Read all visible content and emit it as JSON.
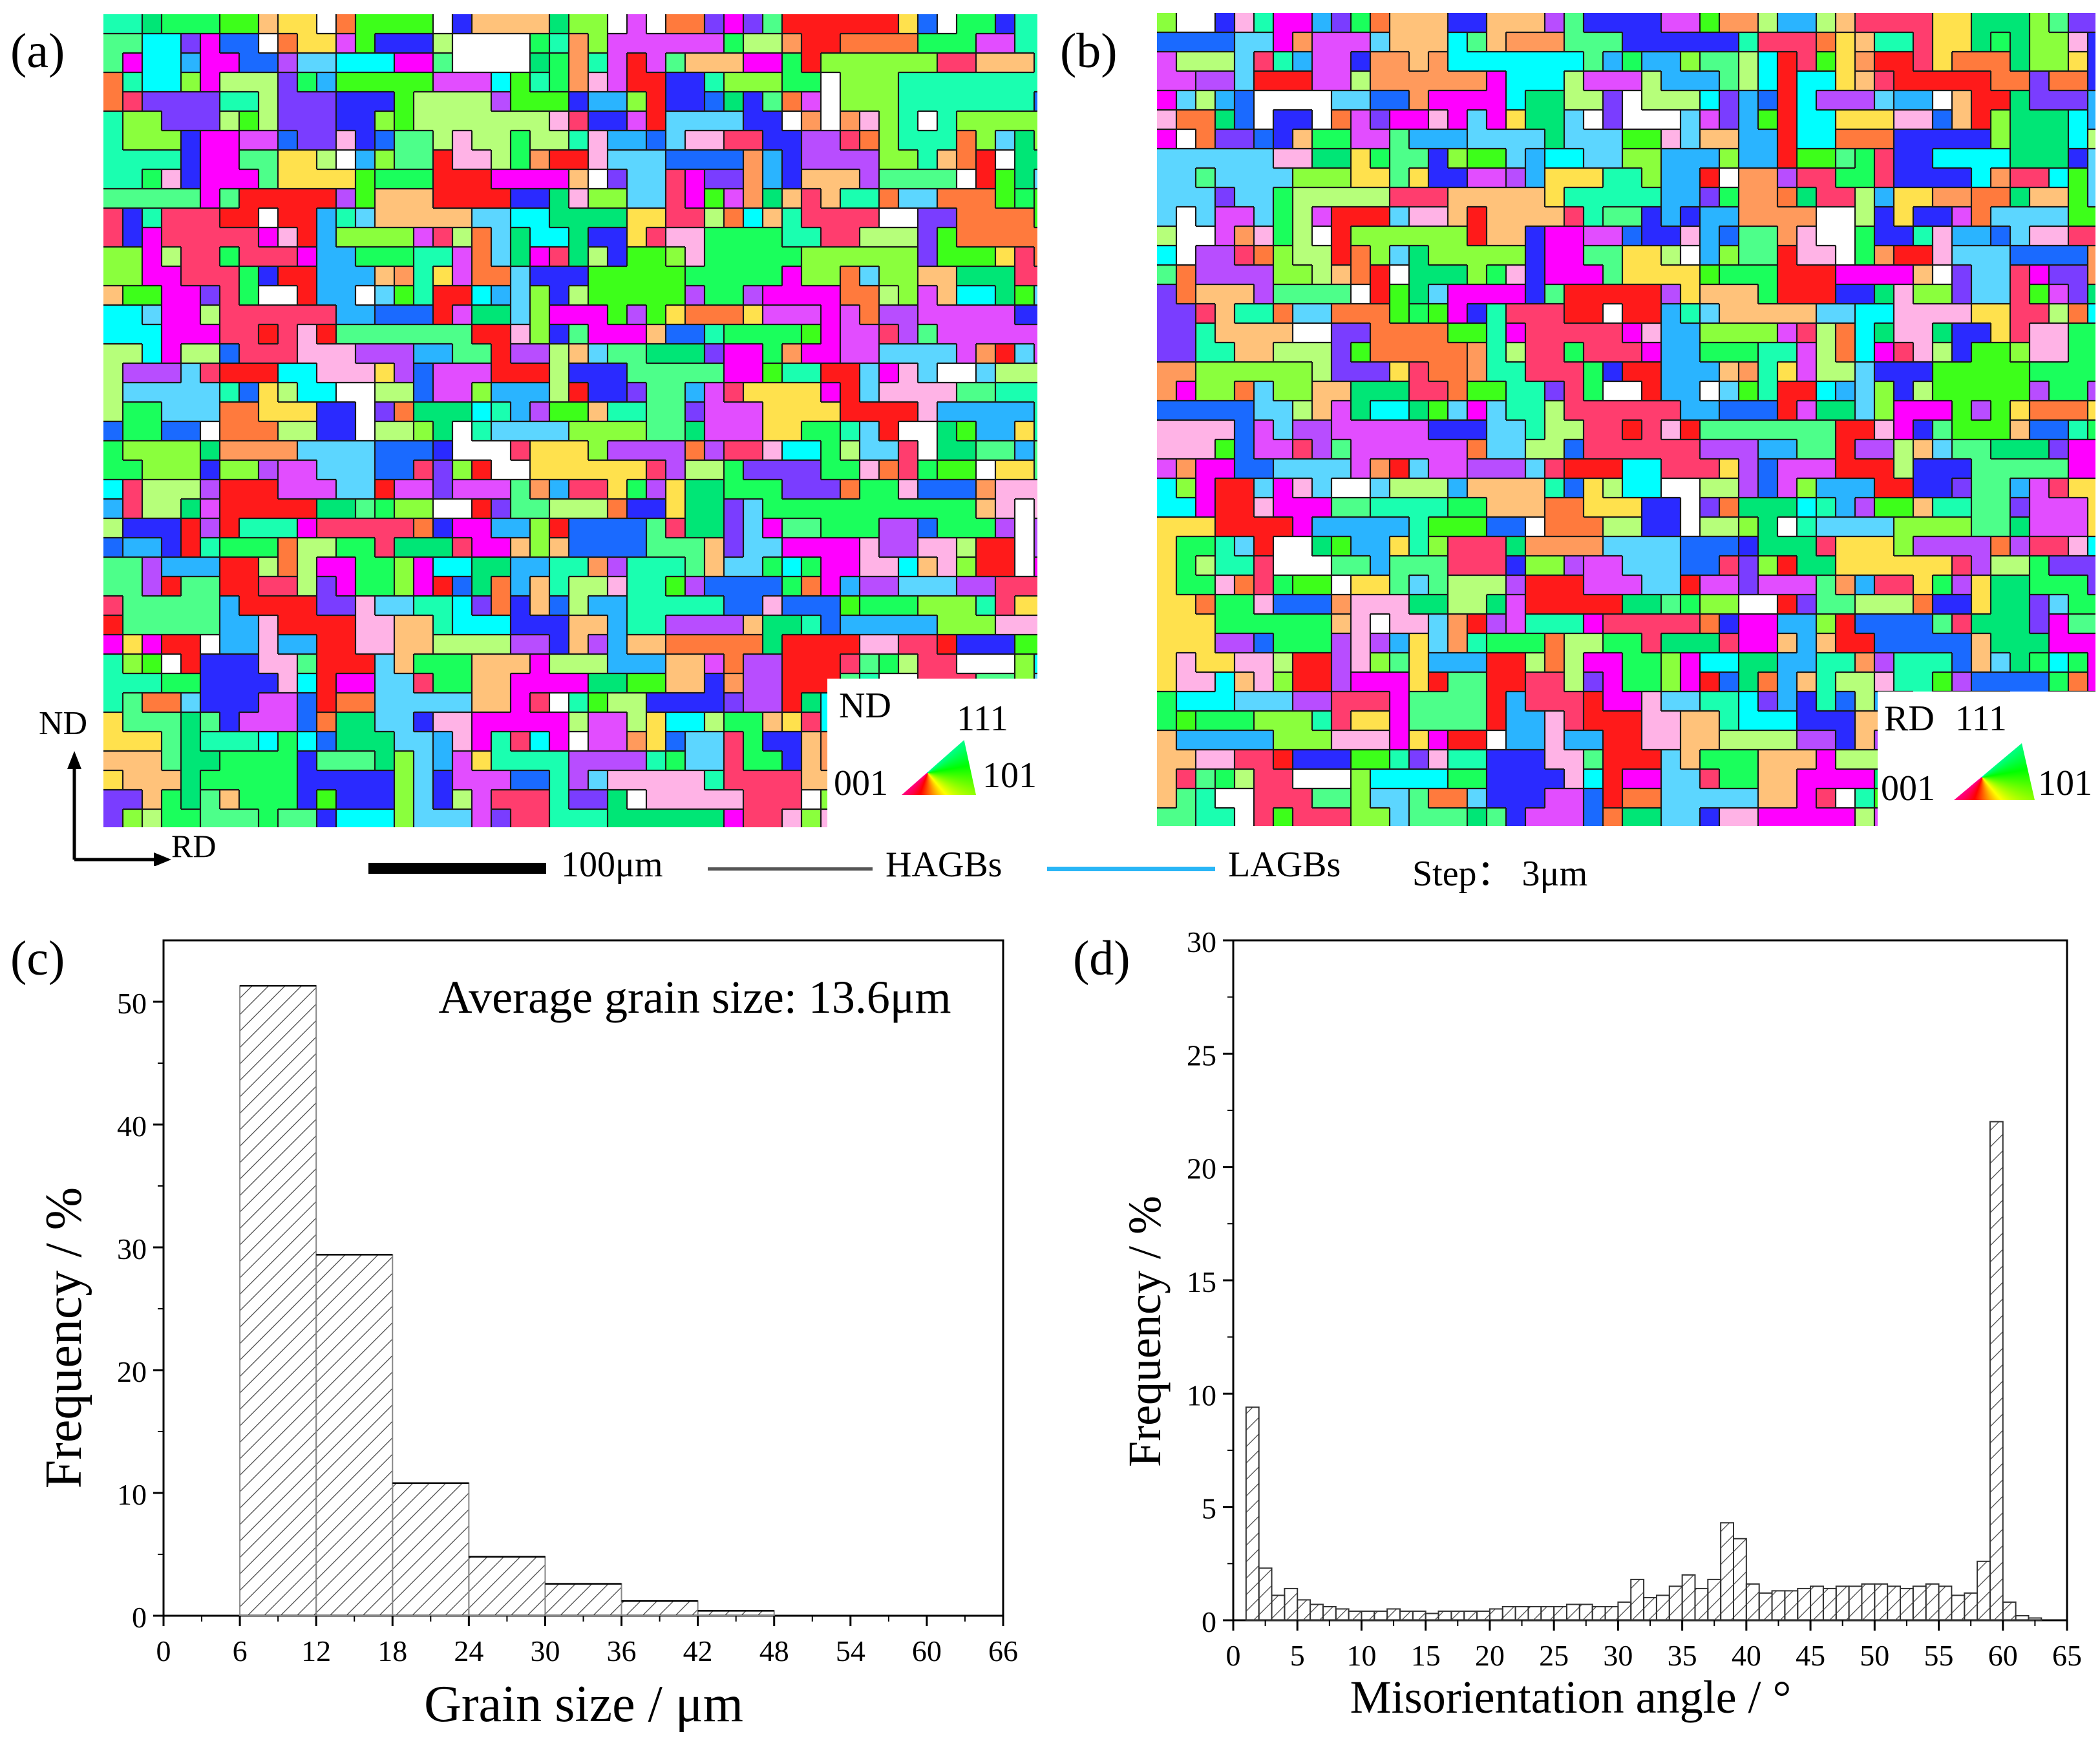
{
  "panels": {
    "a": {
      "label": "(a)",
      "orientation": "ND",
      "ipf": {
        "top": "111",
        "left": "001",
        "right": "101"
      }
    },
    "b": {
      "label": "(b)",
      "orientation": "RD",
      "ipf": {
        "top": "111",
        "left": "001",
        "right": "101"
      }
    },
    "c": {
      "label": "(c)"
    },
    "d": {
      "label": "(d)"
    }
  },
  "axes_indicator": {
    "vertical": "ND",
    "horizontal": "RD"
  },
  "scale_legend": {
    "scale_text": "100μm",
    "hagbs_text": "HAGBs",
    "lagbs_text": "LAGBs",
    "step_text": "Step： 3μm",
    "hagbs_color": "#555555",
    "lagbs_color": "#29b6f6"
  },
  "ebsd_palette": [
    "#ff1a1a",
    "#ff3d6e",
    "#ff7a3d",
    "#ff9a5c",
    "#ffc27a",
    "#ffe14d",
    "#ff00ff",
    "#e24dff",
    "#b84dff",
    "#7a3dff",
    "#2a2aff",
    "#1a6aff",
    "#2ab4ff",
    "#5cd6ff",
    "#00ffff",
    "#1affb0",
    "#1aff5c",
    "#3dff1a",
    "#8aff3d",
    "#b6ff7a",
    "#ffffff",
    "#ffb3e6",
    "#4dff8a",
    "#00e676"
  ],
  "chart_data": [
    {
      "id": "c",
      "type": "bar",
      "annotation": "Average grain size: 13.6μm",
      "xlabel": "Grain size / μm",
      "ylabel": "Frequency / %",
      "xlim": [
        0,
        66
      ],
      "ylim": [
        0,
        55
      ],
      "xticks": [
        0,
        6,
        12,
        18,
        24,
        30,
        36,
        42,
        48,
        54,
        60,
        66
      ],
      "yticks": [
        0,
        10,
        20,
        30,
        40,
        50
      ],
      "bins": [
        {
          "x0": 6,
          "x1": 12,
          "value": 51.3
        },
        {
          "x0": 12,
          "x1": 18,
          "value": 29.4
        },
        {
          "x0": 18,
          "x1": 24,
          "value": 10.8
        },
        {
          "x0": 24,
          "x1": 30,
          "value": 4.8
        },
        {
          "x0": 30,
          "x1": 36,
          "value": 2.6
        },
        {
          "x0": 36,
          "x1": 42,
          "value": 1.2
        },
        {
          "x0": 42,
          "x1": 48,
          "value": 0.4
        }
      ]
    },
    {
      "id": "d",
      "type": "bar",
      "xlabel": "Misorientation angle / °",
      "ylabel": "Frequency / %",
      "xlim": [
        0,
        65
      ],
      "ylim": [
        0,
        30
      ],
      "xticks": [
        0,
        5,
        10,
        15,
        20,
        25,
        30,
        35,
        40,
        45,
        50,
        55,
        60,
        65
      ],
      "yticks": [
        0,
        5,
        10,
        15,
        20,
        25,
        30
      ],
      "x": [
        1.5,
        2.5,
        3.5,
        4.5,
        5.5,
        6.5,
        7.5,
        8.5,
        9.5,
        10.5,
        11.5,
        12.5,
        13.5,
        14.5,
        15.5,
        16.5,
        17.5,
        18.5,
        19.5,
        20.5,
        21.5,
        22.5,
        23.5,
        24.5,
        25.5,
        26.5,
        27.5,
        28.5,
        29.5,
        30.5,
        31.5,
        32.5,
        33.5,
        34.5,
        35.5,
        36.5,
        37.5,
        38.5,
        39.5,
        40.5,
        41.5,
        42.5,
        43.5,
        44.5,
        45.5,
        46.5,
        47.5,
        48.5,
        49.5,
        50.5,
        51.5,
        52.5,
        53.5,
        54.5,
        55.5,
        56.5,
        57.5,
        58.5,
        59.5,
        60.5,
        61.5,
        62.5
      ],
      "values": [
        9.4,
        2.3,
        1.1,
        1.4,
        0.9,
        0.7,
        0.6,
        0.5,
        0.4,
        0.4,
        0.4,
        0.5,
        0.4,
        0.4,
        0.3,
        0.4,
        0.4,
        0.4,
        0.4,
        0.5,
        0.6,
        0.6,
        0.6,
        0.6,
        0.6,
        0.7,
        0.7,
        0.6,
        0.6,
        0.8,
        1.8,
        1.0,
        1.1,
        1.5,
        2.0,
        1.4,
        1.8,
        4.3,
        3.6,
        1.6,
        1.2,
        1.3,
        1.3,
        1.4,
        1.5,
        1.4,
        1.5,
        1.5,
        1.6,
        1.6,
        1.5,
        1.4,
        1.5,
        1.6,
        1.5,
        1.1,
        1.2,
        2.6,
        22.0,
        0.8,
        0.2,
        0.1
      ]
    }
  ]
}
